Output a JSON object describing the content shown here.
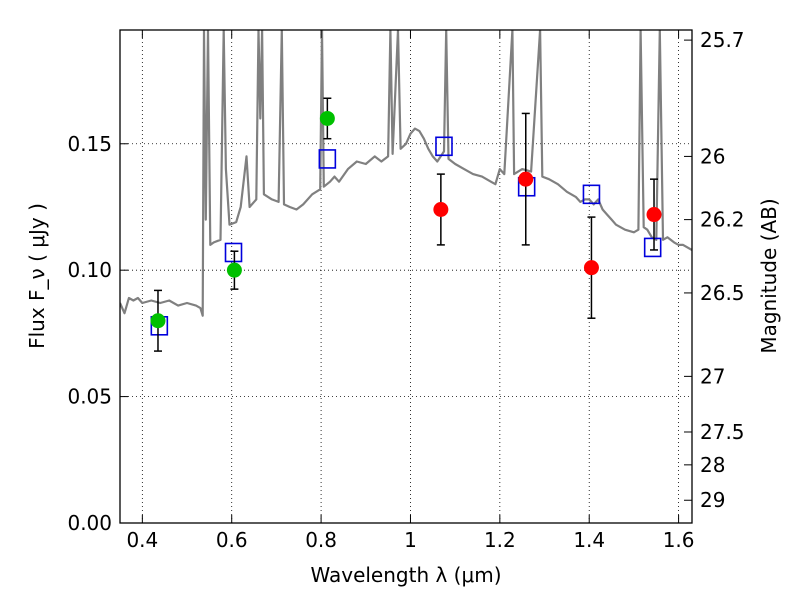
{
  "chart_data": {
    "type": "scatter",
    "title": "",
    "xlabel": "Wavelength  λ (μm)",
    "ylabel": "Flux  F_ν  ( μJy )",
    "ylabel_right": "Magnitude (AB)",
    "xlim": [
      0.35,
      1.63
    ],
    "ylim": [
      0.0,
      0.195
    ],
    "grid": "dotted",
    "x_ticks": [
      0.4,
      0.6,
      0.8,
      1.0,
      1.2,
      1.4,
      1.6
    ],
    "x_tick_labels": [
      "0.4",
      "0.6",
      "0.8",
      "1",
      "1.2",
      "1.4",
      "1.6"
    ],
    "y_ticks": [
      0.0,
      0.05,
      0.1,
      0.15
    ],
    "y_tick_labels": [
      "0.00",
      "0.05",
      "0.10",
      "0.15"
    ],
    "right_ticks": [
      {
        "label": "25.7",
        "flux": 0.191
      },
      {
        "label": "26",
        "flux": 0.145
      },
      {
        "label": "26.2",
        "flux": 0.12
      },
      {
        "label": "26.5",
        "flux": 0.091
      },
      {
        "label": "27",
        "flux": 0.058
      },
      {
        "label": "27.5",
        "flux": 0.036
      },
      {
        "label": "28",
        "flux": 0.023
      },
      {
        "label": "29",
        "flux": 0.009
      }
    ],
    "series": [
      {
        "kind": "line",
        "color": "#808080",
        "points": [
          [
            0.35,
            0.087
          ],
          [
            0.36,
            0.083
          ],
          [
            0.37,
            0.089
          ],
          [
            0.38,
            0.088
          ],
          [
            0.39,
            0.089
          ],
          [
            0.4,
            0.087
          ],
          [
            0.42,
            0.088
          ],
          [
            0.44,
            0.087
          ],
          [
            0.46,
            0.088
          ],
          [
            0.48,
            0.086
          ],
          [
            0.5,
            0.087
          ],
          [
            0.52,
            0.086
          ],
          [
            0.53,
            0.085
          ],
          [
            0.535,
            0.082
          ],
          [
            0.538,
            0.195
          ],
          [
            0.542,
            0.12
          ],
          [
            0.547,
            0.195
          ],
          [
            0.552,
            0.11
          ],
          [
            0.56,
            0.111
          ],
          [
            0.575,
            0.112
          ],
          [
            0.582,
            0.195
          ],
          [
            0.587,
            0.14
          ],
          [
            0.595,
            0.118
          ],
          [
            0.61,
            0.119
          ],
          [
            0.62,
            0.125
          ],
          [
            0.633,
            0.145
          ],
          [
            0.64,
            0.125
          ],
          [
            0.655,
            0.128
          ],
          [
            0.66,
            0.195
          ],
          [
            0.664,
            0.16
          ],
          [
            0.668,
            0.195
          ],
          [
            0.672,
            0.13
          ],
          [
            0.69,
            0.128
          ],
          [
            0.705,
            0.127
          ],
          [
            0.712,
            0.195
          ],
          [
            0.717,
            0.126
          ],
          [
            0.73,
            0.125
          ],
          [
            0.745,
            0.124
          ],
          [
            0.76,
            0.126
          ],
          [
            0.78,
            0.13
          ],
          [
            0.798,
            0.132
          ],
          [
            0.802,
            0.195
          ],
          [
            0.806,
            0.133
          ],
          [
            0.82,
            0.135
          ],
          [
            0.83,
            0.137
          ],
          [
            0.84,
            0.135
          ],
          [
            0.86,
            0.14
          ],
          [
            0.88,
            0.143
          ],
          [
            0.9,
            0.142
          ],
          [
            0.92,
            0.145
          ],
          [
            0.935,
            0.143
          ],
          [
            0.95,
            0.145
          ],
          [
            0.955,
            0.195
          ],
          [
            0.96,
            0.146
          ],
          [
            0.972,
            0.195
          ],
          [
            0.978,
            0.148
          ],
          [
            0.99,
            0.15
          ],
          [
            1.0,
            0.154
          ],
          [
            1.01,
            0.156
          ],
          [
            1.02,
            0.155
          ],
          [
            1.03,
            0.152
          ],
          [
            1.04,
            0.148
          ],
          [
            1.05,
            0.145
          ],
          [
            1.06,
            0.143
          ],
          [
            1.075,
            0.147
          ],
          [
            1.08,
            0.195
          ],
          [
            1.085,
            0.144
          ],
          [
            1.1,
            0.142
          ],
          [
            1.12,
            0.14
          ],
          [
            1.14,
            0.138
          ],
          [
            1.16,
            0.137
          ],
          [
            1.18,
            0.135
          ],
          [
            1.19,
            0.134
          ],
          [
            1.2,
            0.14
          ],
          [
            1.21,
            0.138
          ],
          [
            1.228,
            0.195
          ],
          [
            1.232,
            0.138
          ],
          [
            1.25,
            0.14
          ],
          [
            1.27,
            0.139
          ],
          [
            1.29,
            0.195
          ],
          [
            1.295,
            0.137
          ],
          [
            1.31,
            0.136
          ],
          [
            1.33,
            0.134
          ],
          [
            1.35,
            0.131
          ],
          [
            1.37,
            0.129
          ],
          [
            1.38,
            0.127
          ],
          [
            1.39,
            0.128
          ],
          [
            1.4,
            0.128
          ],
          [
            1.41,
            0.126
          ],
          [
            1.42,
            0.128
          ],
          [
            1.43,
            0.124
          ],
          [
            1.44,
            0.122
          ],
          [
            1.45,
            0.12
          ],
          [
            1.46,
            0.118
          ],
          [
            1.47,
            0.117
          ],
          [
            1.48,
            0.116
          ],
          [
            1.5,
            0.115
          ],
          [
            1.51,
            0.116
          ],
          [
            1.515,
            0.195
          ],
          [
            1.522,
            0.117
          ],
          [
            1.53,
            0.116
          ],
          [
            1.54,
            0.113
          ],
          [
            1.55,
            0.112
          ],
          [
            1.558,
            0.195
          ],
          [
            1.565,
            0.112
          ],
          [
            1.575,
            0.113
          ],
          [
            1.59,
            0.111
          ],
          [
            1.6,
            0.11
          ],
          [
            1.61,
            0.11
          ],
          [
            1.63,
            0.108
          ]
        ]
      },
      {
        "kind": "markers",
        "marker": "circle",
        "color": "#00c000",
        "points": [
          {
            "x": 0.435,
            "y": 0.08,
            "err": 0.012
          },
          {
            "x": 0.606,
            "y": 0.1,
            "err": 0.0075
          },
          {
            "x": 0.814,
            "y": 0.16,
            "err": 0.008
          }
        ]
      },
      {
        "kind": "markers",
        "marker": "circle",
        "color": "#ff0000",
        "points": [
          {
            "x": 1.068,
            "y": 0.124,
            "err": 0.014
          },
          {
            "x": 1.258,
            "y": 0.136,
            "err": 0.026
          },
          {
            "x": 1.405,
            "y": 0.101,
            "err": 0.02
          },
          {
            "x": 1.545,
            "y": 0.122,
            "err": 0.014
          }
        ]
      },
      {
        "kind": "markers",
        "marker": "square",
        "color": "#0000dd",
        "points": [
          {
            "x": 0.438,
            "y": 0.078
          },
          {
            "x": 0.604,
            "y": 0.107
          },
          {
            "x": 0.814,
            "y": 0.144
          },
          {
            "x": 1.075,
            "y": 0.149
          },
          {
            "x": 1.26,
            "y": 0.133
          },
          {
            "x": 1.405,
            "y": 0.13
          },
          {
            "x": 1.542,
            "y": 0.109
          }
        ]
      }
    ]
  }
}
